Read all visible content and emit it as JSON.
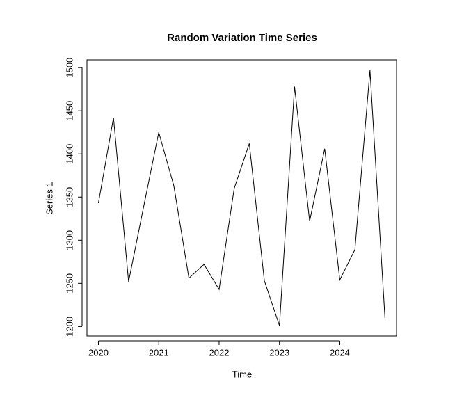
{
  "chart_data": {
    "type": "line",
    "title": "Random Variation Time Series",
    "xlabel": "Time",
    "ylabel": "Series 1",
    "x": [
      2020,
      2020.25,
      2020.5,
      2020.75,
      2021,
      2021.25,
      2021.5,
      2021.75,
      2022,
      2022.25,
      2022.5,
      2022.75,
      2023,
      2023.25,
      2023.5,
      2023.75,
      2024,
      2024.25,
      2024.5,
      2024.75
    ],
    "values": [
      1343,
      1442,
      1252,
      1339,
      1425,
      1363,
      1256,
      1272,
      1243,
      1360,
      1412,
      1253,
      1201,
      1478,
      1322,
      1406,
      1254,
      1289,
      1497,
      1208
    ],
    "color": "#000000",
    "xlim": [
      2019.81,
      2024.94
    ],
    "xticks": [
      2020,
      2021,
      2022,
      2023,
      2024
    ],
    "ylim": [
      1189,
      1509
    ],
    "yticks": [
      1200,
      1250,
      1300,
      1350,
      1400,
      1450,
      1500
    ]
  }
}
